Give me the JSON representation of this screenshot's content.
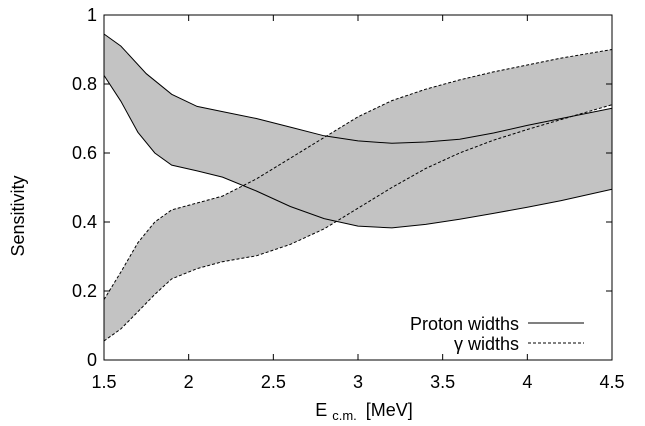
{
  "chart_data": {
    "type": "area",
    "xlabel_main": "E",
    "xlabel_sub": "c.m.",
    "xlabel_unit": "[MeV]",
    "ylabel": "Sensitivity",
    "xlim": [
      1.5,
      4.5
    ],
    "ylim": [
      0,
      1
    ],
    "x_ticks": [
      "1.5",
      "2",
      "2.5",
      "3",
      "3.5",
      "4",
      "4.5"
    ],
    "y_ticks": [
      "0",
      "0.2",
      "0.4",
      "0.6",
      "0.8",
      "1"
    ],
    "grid": false,
    "legend_position": "bottom-right",
    "band_color": "#c0c0c0",
    "line_color": "#000000",
    "series": [
      {
        "name": "Proton widths",
        "style": "solid",
        "upper": {
          "x": [
            1.5,
            1.6,
            1.75,
            1.9,
            2.05,
            2.2,
            2.4,
            2.6,
            2.8,
            3.0,
            3.2,
            3.4,
            3.6,
            3.8,
            4.0,
            4.2,
            4.5
          ],
          "y": [
            0.945,
            0.91,
            0.83,
            0.77,
            0.735,
            0.72,
            0.7,
            0.675,
            0.65,
            0.635,
            0.628,
            0.632,
            0.64,
            0.658,
            0.68,
            0.7,
            0.73
          ]
        },
        "lower": {
          "x": [
            1.5,
            1.6,
            1.7,
            1.8,
            1.9,
            2.05,
            2.2,
            2.4,
            2.6,
            2.8,
            3.0,
            3.2,
            3.4,
            3.6,
            3.8,
            4.0,
            4.2,
            4.5
          ],
          "y": [
            0.825,
            0.75,
            0.66,
            0.6,
            0.565,
            0.548,
            0.53,
            0.49,
            0.445,
            0.41,
            0.388,
            0.383,
            0.393,
            0.408,
            0.425,
            0.443,
            0.462,
            0.495
          ]
        }
      },
      {
        "name": "γ widths",
        "style": "dashed",
        "upper": {
          "x": [
            1.5,
            1.6,
            1.7,
            1.8,
            1.9,
            2.05,
            2.2,
            2.4,
            2.6,
            2.8,
            3.0,
            3.2,
            3.4,
            3.6,
            3.8,
            4.0,
            4.2,
            4.5
          ],
          "y": [
            0.175,
            0.255,
            0.34,
            0.4,
            0.435,
            0.455,
            0.475,
            0.525,
            0.585,
            0.645,
            0.705,
            0.752,
            0.785,
            0.812,
            0.835,
            0.855,
            0.875,
            0.9
          ]
        },
        "lower": {
          "x": [
            1.5,
            1.6,
            1.7,
            1.8,
            1.9,
            2.05,
            2.2,
            2.4,
            2.6,
            2.8,
            3.0,
            3.2,
            3.4,
            3.6,
            3.8,
            4.0,
            4.2,
            4.5
          ],
          "y": [
            0.055,
            0.09,
            0.14,
            0.19,
            0.235,
            0.265,
            0.285,
            0.302,
            0.335,
            0.38,
            0.44,
            0.5,
            0.555,
            0.6,
            0.637,
            0.668,
            0.697,
            0.74
          ]
        }
      }
    ]
  }
}
